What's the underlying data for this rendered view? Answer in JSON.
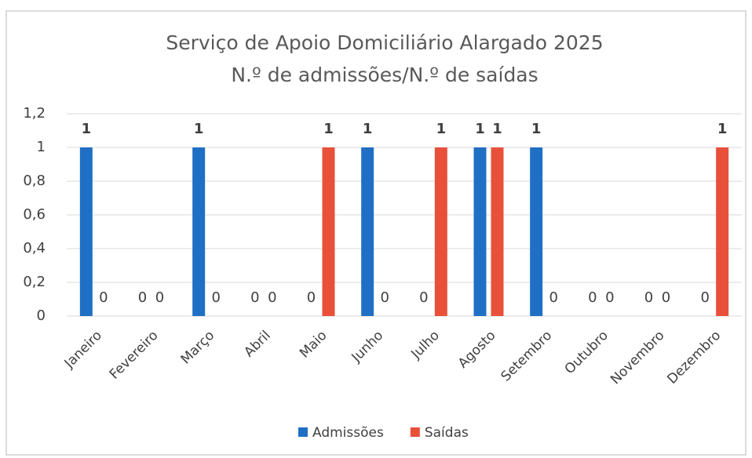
{
  "chart_data": {
    "type": "bar",
    "title": "Serviço de Apoio Domiciliário Alargado 2025",
    "subtitle": "N.º de admissões/N.º de saídas",
    "categories": [
      "Janeiro",
      "Fevereiro",
      "Março",
      "Abril",
      "Maio",
      "Junho",
      "Julho",
      "Agosto",
      "Setembro",
      "Outubro",
      "Novembro",
      "Dezembro"
    ],
    "series": [
      {
        "name": "Admissões",
        "color": "#1f6fc5",
        "values": [
          1,
          0,
          1,
          0,
          0,
          1,
          0,
          1,
          1,
          0,
          0,
          0
        ]
      },
      {
        "name": "Saídas",
        "color": "#e8503a",
        "values": [
          0,
          0,
          0,
          0,
          1,
          0,
          1,
          1,
          0,
          0,
          0,
          1
        ]
      }
    ],
    "ylim": [
      0,
      1.2
    ],
    "yticks": [
      0,
      {
        "value": 0.2,
        "label": "0,2"
      },
      {
        "value": 0.4,
        "label": "0,4"
      },
      {
        "value": 0.6,
        "label": "0,6"
      },
      {
        "value": 0.8,
        "label": "0,8"
      },
      1,
      {
        "value": 1.2,
        "label": "1,2"
      }
    ],
    "grid": true,
    "legend": "bottom"
  }
}
